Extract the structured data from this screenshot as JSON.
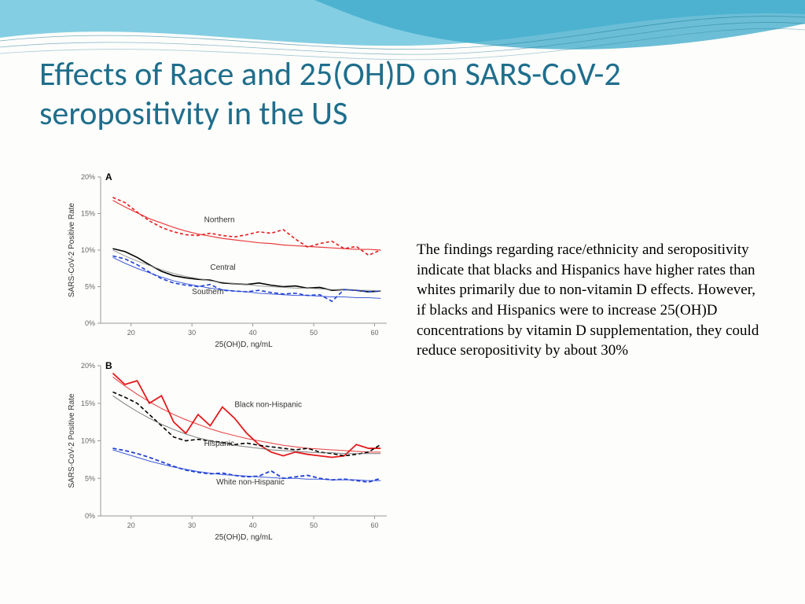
{
  "slide": {
    "title": "Effects of Race and 25(OH)D on SARS-CoV-2 seropositivity in the US",
    "body": "The findings regarding race/ethnicity and seropositivity indicate that blacks and Hispanics have higher rates than whites primarily due to non-vitamin D effects. However, if blacks and Hispanics were to increase 25(OH)D concentrations by vitamin D supplementation, they could reduce seropositivity by about 30%"
  },
  "colors": {
    "title": "#1f6e8c",
    "wave1": "#5abed9",
    "wave2": "#3aa8c9",
    "background": "#fdfdfb",
    "grid": "#999999",
    "axis_text": "#666666",
    "label_text": "#333333"
  },
  "wave": {
    "fill_opacity": 0.75,
    "stroke_color": "#1f7a99"
  },
  "chartA": {
    "panel_label": "A",
    "type": "line",
    "xlabel": "25(OH)D, ng/mL",
    "ylabel": "SARS-CoV-2 Positive Rate",
    "xlim": [
      15,
      62
    ],
    "ylim": [
      0,
      20
    ],
    "xticks": [
      20,
      30,
      40,
      50,
      60
    ],
    "yticks": [
      0,
      5,
      10,
      15,
      20
    ],
    "ytick_labels": [
      "0%",
      "5%",
      "10%",
      "15%",
      "20%"
    ],
    "label_fontsize": 10,
    "tick_fontsize": 9,
    "series": [
      {
        "name": "Northern",
        "label_x": 32,
        "label_y": 13.8,
        "color": "#e41a1c",
        "dash": "4 3",
        "width": 1.6,
        "data_x": [
          17,
          19,
          21,
          23,
          25,
          27,
          29,
          31,
          33,
          35,
          37,
          39,
          41,
          43,
          45,
          47,
          49,
          51,
          53,
          55,
          57,
          59,
          61
        ],
        "data_y": [
          17.2,
          16.5,
          15.2,
          14.0,
          13.1,
          12.5,
          12.1,
          12.0,
          12.3,
          12.0,
          11.8,
          12.1,
          12.5,
          12.3,
          12.8,
          11.5,
          10.4,
          10.9,
          11.2,
          10.2,
          10.5,
          9.3,
          10.0
        ],
        "trend_y": [
          16.8,
          15.9,
          15.1,
          14.3,
          13.7,
          13.1,
          12.6,
          12.2,
          11.9,
          11.6,
          11.4,
          11.2,
          11.0,
          10.9,
          10.7,
          10.6,
          10.5,
          10.4,
          10.3,
          10.2,
          10.1,
          10.1,
          10.0
        ],
        "trend_width": 1.2
      },
      {
        "name": "Central",
        "label_x": 33,
        "label_y": 7.3,
        "color": "#000000",
        "dash": "none",
        "width": 1.6,
        "data_x": [
          17,
          19,
          21,
          23,
          25,
          27,
          29,
          31,
          33,
          35,
          37,
          39,
          41,
          43,
          45,
          47,
          49,
          51,
          53,
          55,
          57,
          59,
          61
        ],
        "data_y": [
          10.2,
          9.8,
          9.0,
          8.0,
          7.1,
          6.5,
          6.2,
          6.0,
          5.9,
          5.5,
          5.4,
          5.3,
          5.5,
          5.2,
          5.0,
          5.1,
          4.8,
          4.9,
          4.5,
          4.6,
          4.5,
          4.3,
          4.4
        ],
        "trend_y": [
          10.0,
          9.2,
          8.5,
          7.9,
          7.3,
          6.8,
          6.4,
          6.1,
          5.8,
          5.6,
          5.4,
          5.3,
          5.1,
          5.0,
          4.9,
          4.8,
          4.8,
          4.7,
          4.6,
          4.6,
          4.5,
          4.5,
          4.4
        ],
        "trend_width": 1.0,
        "trend_color": "#888888"
      },
      {
        "name": "Southern",
        "label_x": 30,
        "label_y": 4.0,
        "color": "#1f3fd4",
        "dash": "5 3",
        "width": 1.6,
        "data_x": [
          17,
          19,
          21,
          23,
          25,
          27,
          29,
          31,
          33,
          35,
          37,
          39,
          41,
          43,
          45,
          47,
          49,
          51,
          53,
          55,
          57,
          59,
          61
        ],
        "data_y": [
          9.2,
          8.8,
          8.0,
          7.0,
          6.1,
          5.5,
          5.2,
          5.0,
          5.3,
          4.5,
          4.4,
          4.3,
          4.5,
          4.2,
          4.0,
          4.1,
          3.8,
          3.9,
          3.0,
          4.6,
          4.5,
          4.3,
          4.4
        ],
        "trend_y": [
          9.0,
          8.2,
          7.5,
          6.9,
          6.3,
          5.8,
          5.4,
          5.1,
          4.8,
          4.6,
          4.4,
          4.3,
          4.1,
          4.0,
          3.9,
          3.8,
          3.8,
          3.7,
          3.6,
          3.6,
          3.5,
          3.5,
          3.4
        ],
        "trend_width": 1.0
      }
    ]
  },
  "chartB": {
    "panel_label": "B",
    "type": "line",
    "xlabel": "25(OH)D, ng/mL",
    "ylabel": "SARS-CoV-2 Positive Rate",
    "xlim": [
      15,
      62
    ],
    "ylim": [
      0,
      20
    ],
    "xticks": [
      20,
      30,
      40,
      50,
      60
    ],
    "yticks": [
      0,
      5,
      10,
      15,
      20
    ],
    "ytick_labels": [
      "0%",
      "5%",
      "10%",
      "15%",
      "20%"
    ],
    "label_fontsize": 10,
    "tick_fontsize": 9,
    "series": [
      {
        "name": "Black non-Hispanic",
        "label_x": 37,
        "label_y": 14.5,
        "color": "#e41a1c",
        "dash": "none",
        "width": 1.8,
        "data_x": [
          17,
          19,
          21,
          23,
          25,
          27,
          29,
          31,
          33,
          35,
          37,
          39,
          41,
          43,
          45,
          47,
          49,
          51,
          53,
          55,
          57,
          59,
          61
        ],
        "data_y": [
          19.0,
          17.5,
          18.0,
          15.0,
          16.0,
          12.5,
          11.0,
          13.5,
          12.0,
          14.5,
          13.0,
          11.0,
          9.5,
          8.5,
          8.0,
          8.5,
          8.2,
          8.0,
          7.8,
          8.0,
          9.5,
          9.0,
          9.0
        ],
        "trend_y": [
          18.5,
          17.3,
          16.2,
          15.2,
          14.3,
          13.5,
          12.8,
          12.2,
          11.6,
          11.1,
          10.7,
          10.3,
          10.0,
          9.7,
          9.4,
          9.2,
          9.0,
          8.9,
          8.8,
          8.7,
          8.6,
          8.5,
          8.5
        ],
        "trend_width": 1.0
      },
      {
        "name": "Hispanic",
        "label_x": 32,
        "label_y": 9.3,
        "color": "#000000",
        "dash": "5 3",
        "width": 1.6,
        "data_x": [
          17,
          19,
          21,
          23,
          25,
          27,
          29,
          31,
          33,
          35,
          37,
          39,
          41,
          43,
          45,
          47,
          49,
          51,
          53,
          55,
          57,
          59,
          61
        ],
        "data_y": [
          16.5,
          15.8,
          15.0,
          13.5,
          12.0,
          10.5,
          10.0,
          10.2,
          10.0,
          9.8,
          9.5,
          9.7,
          9.4,
          9.2,
          9.0,
          8.8,
          9.0,
          8.5,
          8.3,
          8.0,
          8.2,
          8.5,
          9.5
        ],
        "trend_y": [
          16.0,
          14.9,
          13.9,
          13.0,
          12.2,
          11.5,
          10.9,
          10.4,
          10.0,
          9.7,
          9.4,
          9.2,
          9.0,
          8.8,
          8.7,
          8.6,
          8.5,
          8.4,
          8.4,
          8.3,
          8.3,
          8.3,
          8.3
        ],
        "trend_width": 1.0,
        "trend_color": "#666666"
      },
      {
        "name": "White non-Hispanic",
        "label_x": 34,
        "label_y": 4.2,
        "color": "#1f3fd4",
        "dash": "5 3",
        "width": 1.8,
        "data_x": [
          17,
          19,
          21,
          23,
          25,
          27,
          29,
          31,
          33,
          35,
          37,
          39,
          41,
          43,
          45,
          47,
          49,
          51,
          53,
          55,
          57,
          59,
          61
        ],
        "data_y": [
          9.0,
          8.7,
          8.3,
          7.8,
          7.2,
          6.6,
          6.1,
          5.8,
          5.6,
          5.7,
          5.4,
          5.2,
          5.3,
          6.0,
          5.0,
          5.2,
          5.4,
          5.0,
          4.8,
          4.9,
          4.7,
          4.5,
          5.0
        ],
        "trend_y": [
          8.8,
          8.3,
          7.8,
          7.3,
          6.9,
          6.5,
          6.2,
          5.9,
          5.7,
          5.5,
          5.4,
          5.3,
          5.2,
          5.1,
          5.0,
          5.0,
          4.9,
          4.9,
          4.8,
          4.8,
          4.8,
          4.7,
          4.7
        ],
        "trend_width": 1.0
      }
    ]
  }
}
